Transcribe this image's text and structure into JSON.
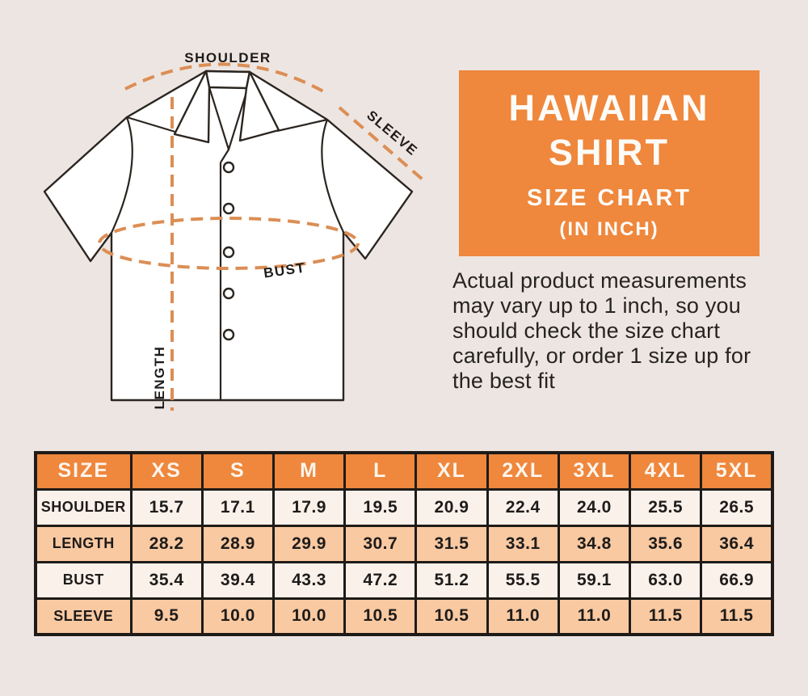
{
  "colors": {
    "background": "#EDE5E1",
    "orange": "#EF873C",
    "dash_orange": "#DB8E55",
    "row_cream": "#FAF1EA",
    "row_peach": "#F9C9A2",
    "table_border": "#1E1B18",
    "text_dark": "#1E1C1A",
    "header_text": "#FCF5ED"
  },
  "diagram": {
    "labels": {
      "shoulder": "SHOULDER",
      "sleeve": "SLEEVE",
      "bust": "BUST",
      "length": "LENGTH"
    }
  },
  "title_box": {
    "line1": "HAWAIIAN",
    "line2": "SHIRT",
    "line3": "SIZE CHART",
    "line4": "(IN INCH)"
  },
  "note": "Actual product measurements may vary up to 1 inch, so you should check the size chart carefully, or order 1 size up for the best fit",
  "chart_data": {
    "type": "table",
    "title": "Hawaiian Shirt Size Chart (in inch)",
    "header": [
      "SIZE",
      "XS",
      "S",
      "M",
      "L",
      "XL",
      "2XL",
      "3XL",
      "4XL",
      "5XL"
    ],
    "rows": [
      {
        "label": "SHOULDER",
        "values": [
          "15.7",
          "17.1",
          "17.9",
          "19.5",
          "20.9",
          "22.4",
          "24.0",
          "25.5",
          "26.5"
        ]
      },
      {
        "label": "LENGTH",
        "values": [
          "28.2",
          "28.9",
          "29.9",
          "30.7",
          "31.5",
          "33.1",
          "34.8",
          "35.6",
          "36.4"
        ]
      },
      {
        "label": "BUST",
        "values": [
          "35.4",
          "39.4",
          "43.3",
          "47.2",
          "51.2",
          "55.5",
          "59.1",
          "63.0",
          "66.9"
        ]
      },
      {
        "label": "SLEEVE",
        "values": [
          "9.5",
          "10.0",
          "10.0",
          "10.5",
          "10.5",
          "11.0",
          "11.0",
          "11.5",
          "11.5"
        ]
      }
    ]
  }
}
